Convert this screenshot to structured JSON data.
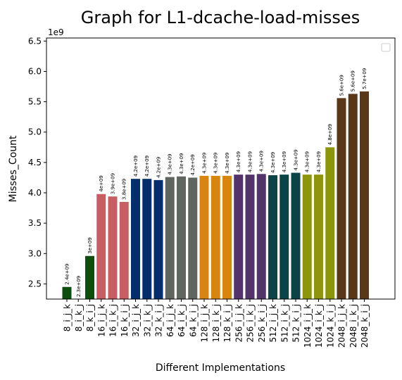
{
  "chart_data": {
    "type": "bar",
    "title": "Graph for L1-dcache-load-misses",
    "xlabel": "Different Implementations",
    "ylabel": "Misses_Count",
    "y_multiplier_label": "1e9",
    "ylim": [
      2.25,
      6.55
    ],
    "y_ticks": [
      2.5,
      3.0,
      3.5,
      4.0,
      4.5,
      5.0,
      5.5,
      6.0,
      6.5
    ],
    "y_tick_labels": [
      "2.5",
      "3.0",
      "3.5",
      "4.0",
      "4.5",
      "5.0",
      "5.5",
      "6.0",
      "6.5"
    ],
    "grid": false,
    "legend": "top-right (empty)",
    "categories": [
      "8_i_j_k",
      "8_i_k_j",
      "8_k_i_j",
      "16_i_j_k",
      "16_i_k_j",
      "16_k_i_j",
      "32_i_j_k",
      "32_i_k_j",
      "32_k_i_j",
      "64_i_j_k",
      "64_i_k_j",
      "64_k_i_j",
      "128_i_j_k",
      "128_i_k_j",
      "128_k_i_j",
      "256_i_j_k",
      "256_i_k_j",
      "256_k_i_j",
      "512_i_j_k",
      "512_i_k_j",
      "512_k_i_j",
      "1024_i_j_k",
      "1024_i_k_j",
      "1024_k_i_j",
      "2048_i_j_k",
      "2048_i_k_j",
      "2048_k_i_j"
    ],
    "values": [
      2.45,
      2.25,
      2.96,
      3.98,
      3.94,
      3.85,
      4.23,
      4.23,
      4.21,
      4.26,
      4.27,
      4.25,
      4.28,
      4.28,
      4.28,
      4.3,
      4.3,
      4.31,
      4.29,
      4.3,
      4.33,
      4.3,
      4.3,
      4.75,
      5.56,
      5.63,
      5.67
    ],
    "data_labels": [
      "2.4e+09",
      "2.3e+09",
      "3e+09",
      "4e+09",
      "3.9e+09",
      "3.8e+09",
      "4.2e+09",
      "4.2e+09",
      "4.2e+09",
      "4.3e+09",
      "4.3e+09",
      "4.2e+09",
      "4.3e+09",
      "4.3e+09",
      "4.3e+09",
      "4.3e+09",
      "4.3e+09",
      "4.3e+09",
      "4.3e+09",
      "4.3e+09",
      "4.3e+09",
      "4.3e+09",
      "4.3e+09",
      "4.8e+09",
      "5.6e+09",
      "5.6e+09",
      "5.7e+09"
    ],
    "colors": [
      "#0d4d0d",
      "#0d4d0d",
      "#0d4d0d",
      "#c85e63",
      "#c85e63",
      "#c85e63",
      "#042e6b",
      "#042e6b",
      "#042e6b",
      "#5f6660",
      "#5f6660",
      "#5f6660",
      "#d88510",
      "#d88510",
      "#d88510",
      "#52346a",
      "#52346a",
      "#52346a",
      "#0b4346",
      "#0b4346",
      "#0b4346",
      "#8c950b",
      "#8c950b",
      "#8c950b",
      "#5a3817",
      "#5a3817",
      "#5a3817"
    ]
  }
}
